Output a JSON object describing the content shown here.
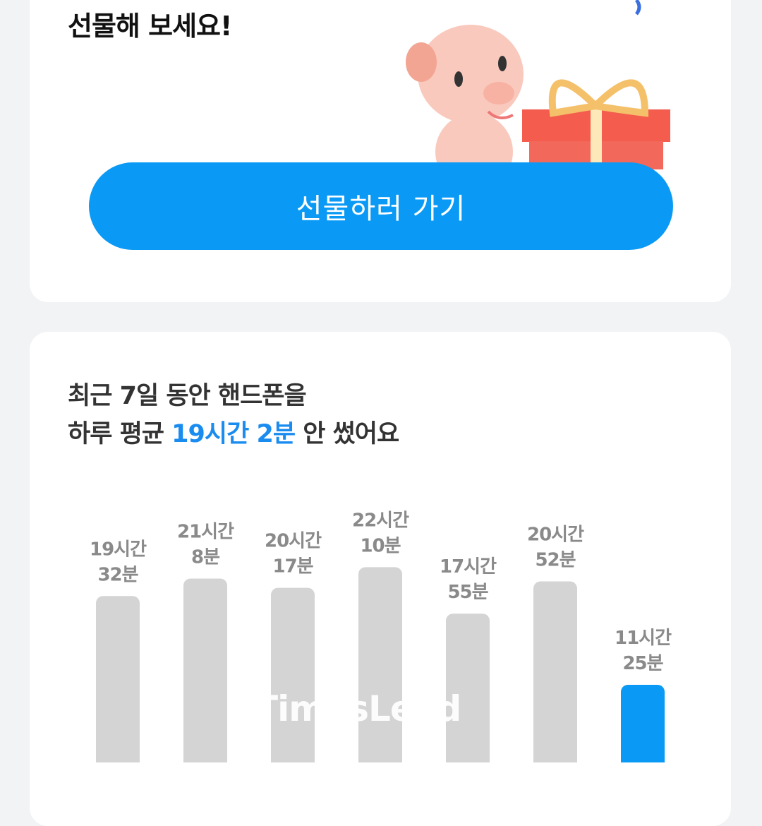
{
  "gift_card": {
    "title": "선물해 보세요!",
    "button_label": "선물하러 가기"
  },
  "usage_card": {
    "heading_line1": "최근 7일 동안 핸드폰을",
    "heading_line2_prefix": "하루 평균 ",
    "heading_highlight": "19시간 2분",
    "heading_line2_suffix": " 안 썼어요"
  },
  "colors": {
    "accent": "#0a9af5",
    "bar_default": "#d4d4d4",
    "bar_today": "#0a9af5",
    "highlight_text": "#1a8cf0"
  },
  "chart_data": {
    "type": "bar",
    "unit": "hours",
    "values": [
      19.53,
      21.13,
      20.28,
      22.17,
      17.92,
      20.87,
      11.42
    ],
    "labels": [
      [
        "19시간",
        "32분"
      ],
      [
        "21시간",
        "8분"
      ],
      [
        "20시간",
        "17분"
      ],
      [
        "22시간",
        "10분"
      ],
      [
        "17시간",
        "55분"
      ],
      [
        "20시간",
        "52분"
      ],
      [
        "11시간",
        "25분"
      ]
    ],
    "highlight_index": 6
  },
  "watermark": "TimesLead"
}
